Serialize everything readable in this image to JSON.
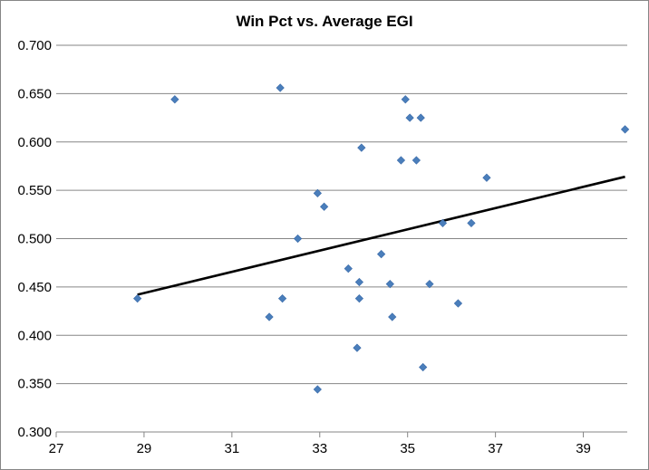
{
  "chart_data": {
    "type": "scatter",
    "title": "Win Pct vs. Average EGI",
    "xlabel": "",
    "ylabel": "",
    "xlim": [
      27,
      40
    ],
    "ylim": [
      0.3,
      0.7
    ],
    "x_ticks": [
      "27",
      "29",
      "31",
      "33",
      "35",
      "37",
      "39"
    ],
    "y_ticks": [
      "0.300",
      "0.350",
      "0.400",
      "0.450",
      "0.500",
      "0.550",
      "0.600",
      "0.650",
      "0.700"
    ],
    "grid": "horizontal",
    "legend": "none",
    "marker_color": "#4a7ebb",
    "trendline_color": "#000000",
    "series": [
      {
        "points": [
          [
            28.85,
            0.438
          ],
          [
            29.7,
            0.644
          ],
          [
            31.85,
            0.419
          ],
          [
            32.1,
            0.656
          ],
          [
            32.15,
            0.438
          ],
          [
            32.5,
            0.5
          ],
          [
            32.95,
            0.547
          ],
          [
            32.95,
            0.344
          ],
          [
            33.1,
            0.533
          ],
          [
            33.65,
            0.469
          ],
          [
            33.85,
            0.387
          ],
          [
            33.9,
            0.438
          ],
          [
            33.9,
            0.455
          ],
          [
            33.95,
            0.594
          ],
          [
            34.4,
            0.484
          ],
          [
            34.6,
            0.453
          ],
          [
            34.65,
            0.419
          ],
          [
            34.85,
            0.581
          ],
          [
            34.95,
            0.644
          ],
          [
            35.05,
            0.625
          ],
          [
            35.2,
            0.581
          ],
          [
            35.3,
            0.625
          ],
          [
            35.35,
            0.367
          ],
          [
            35.5,
            0.453
          ],
          [
            35.8,
            0.516
          ],
          [
            36.15,
            0.433
          ],
          [
            36.45,
            0.516
          ],
          [
            36.8,
            0.563
          ],
          [
            39.95,
            0.613
          ]
        ]
      }
    ],
    "trendline": {
      "x": [
        28.85,
        39.95
      ],
      "y": [
        0.442,
        0.564
      ]
    }
  }
}
